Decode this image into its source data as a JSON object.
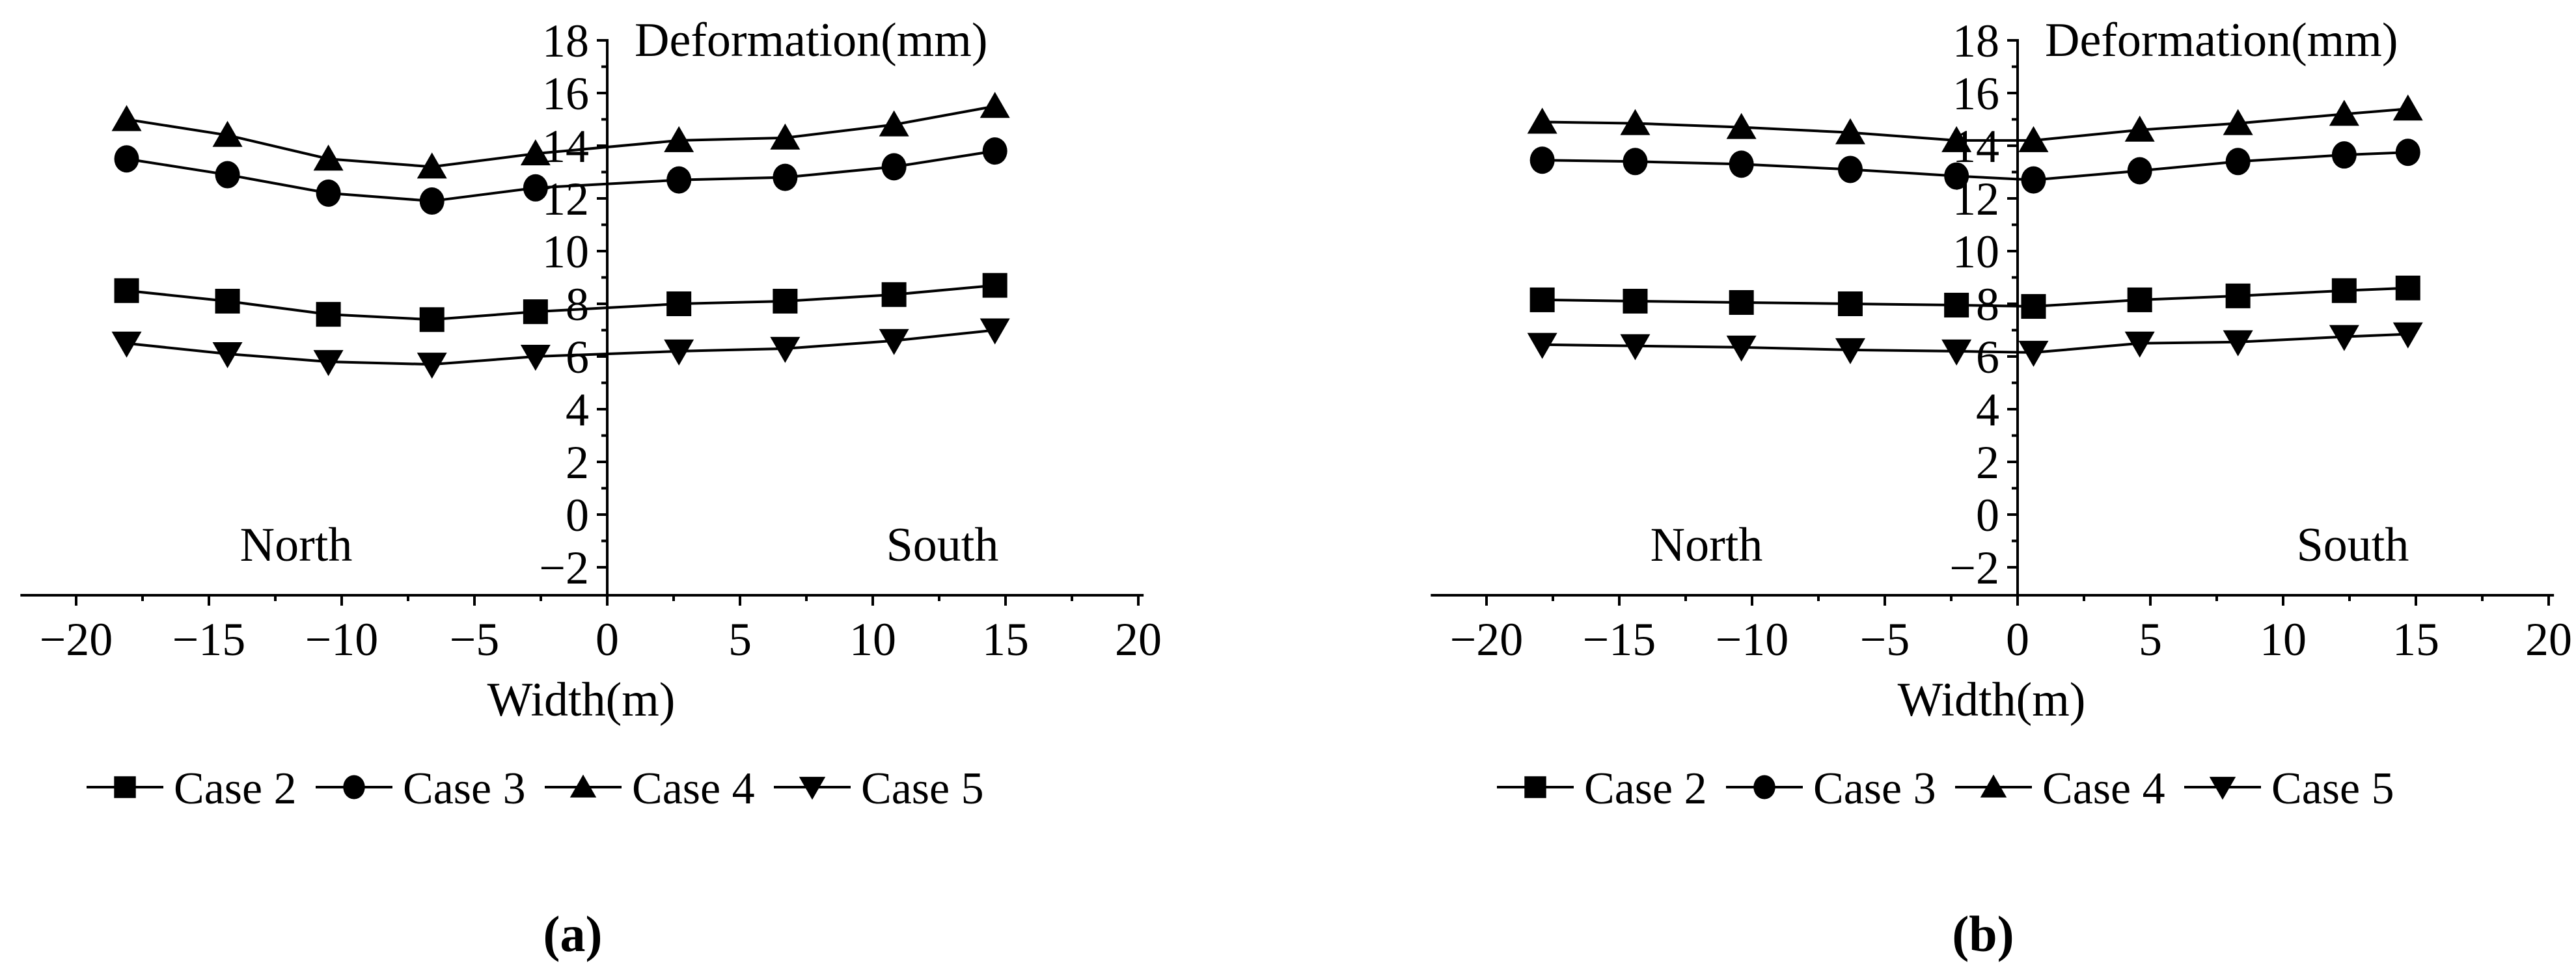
{
  "figure": {
    "background_color": "#ffffff",
    "ink_color": "#000000"
  },
  "chart_data": [
    {
      "type": "line",
      "panel_label": "(a)",
      "title": "Deformation(mm)",
      "xlabel": "Width(m)",
      "ylabel": "Deformation(mm)",
      "region_labels": {
        "left": "North",
        "right": "South"
      },
      "legend_position": "bottom",
      "grid": false,
      "x_axis": {
        "min": -20,
        "max": 20,
        "minor_step": 2.5,
        "tick_values": [
          -20,
          -15,
          -10,
          -5,
          0,
          5,
          10,
          15,
          20
        ],
        "tick_labels": [
          "−20",
          "−15",
          "−10",
          "−5",
          "0",
          "5",
          "10",
          "15",
          "20"
        ]
      },
      "y_axis": {
        "min": -2,
        "max": 18,
        "minor_step": 1,
        "tick_values": [
          18,
          16,
          14,
          12,
          10,
          8,
          6,
          4,
          2,
          0,
          -2
        ],
        "tick_labels": [
          "18",
          "16",
          "14",
          "12",
          "10",
          "8",
          "6",
          "4",
          "2",
          "0",
          "−2"
        ]
      },
      "x": [
        -18.1,
        -14.3,
        -10.5,
        -6.6,
        -2.7,
        2.7,
        6.7,
        10.8,
        14.6
      ],
      "series": [
        {
          "name": "Case 2",
          "marker": "square",
          "y": [
            8.5,
            8.1,
            7.6,
            7.4,
            7.7,
            8.0,
            8.1,
            8.35,
            8.7
          ]
        },
        {
          "name": "Case 3",
          "marker": "circle",
          "y": [
            13.5,
            12.9,
            12.2,
            11.9,
            12.4,
            12.7,
            12.8,
            13.2,
            13.8
          ]
        },
        {
          "name": "Case 4",
          "marker": "triangle-up",
          "y": [
            15.0,
            14.4,
            13.5,
            13.2,
            13.7,
            14.2,
            14.3,
            14.8,
            15.5
          ]
        },
        {
          "name": "Case 5",
          "marker": "triangle-down",
          "y": [
            6.5,
            6.1,
            5.8,
            5.7,
            6.0,
            6.2,
            6.3,
            6.6,
            7.0
          ]
        }
      ]
    },
    {
      "type": "line",
      "panel_label": "(b)",
      "title": "Deformation(mm)",
      "xlabel": "Width(m)",
      "ylabel": "Deformation(mm)",
      "region_labels": {
        "left": "North",
        "right": "South"
      },
      "legend_position": "bottom",
      "grid": false,
      "x_axis": {
        "min": -20,
        "max": 20,
        "minor_step": 2.5,
        "tick_values": [
          -20,
          -15,
          -10,
          -5,
          0,
          5,
          10,
          15,
          20
        ],
        "tick_labels": [
          "−20",
          "−15",
          "−10",
          "−5",
          "0",
          "5",
          "10",
          "15",
          "20"
        ]
      },
      "y_axis": {
        "min": -2,
        "max": 18,
        "minor_step": 1,
        "tick_values": [
          18,
          16,
          14,
          12,
          10,
          8,
          6,
          4,
          2,
          0,
          -2
        ],
        "tick_labels": [
          "18",
          "16",
          "14",
          "12",
          "10",
          "8",
          "6",
          "4",
          "2",
          "0",
          "−2"
        ]
      },
      "x": [
        -17.9,
        -14.4,
        -10.4,
        -6.3,
        -2.3,
        0.6,
        4.6,
        8.3,
        12.3,
        14.7
      ],
      "series": [
        {
          "name": "Case 2",
          "marker": "square",
          "y": [
            8.15,
            8.1,
            8.05,
            8.0,
            7.95,
            7.9,
            8.15,
            8.3,
            8.5,
            8.6
          ]
        },
        {
          "name": "Case 3",
          "marker": "circle",
          "y": [
            13.45,
            13.4,
            13.3,
            13.1,
            12.85,
            12.7,
            13.05,
            13.4,
            13.65,
            13.75
          ]
        },
        {
          "name": "Case 4",
          "marker": "triangle-up",
          "y": [
            14.9,
            14.85,
            14.7,
            14.5,
            14.2,
            14.2,
            14.6,
            14.85,
            15.2,
            15.4
          ]
        },
        {
          "name": "Case 5",
          "marker": "triangle-down",
          "y": [
            6.45,
            6.4,
            6.35,
            6.25,
            6.2,
            6.15,
            6.5,
            6.55,
            6.75,
            6.85
          ]
        }
      ]
    }
  ]
}
